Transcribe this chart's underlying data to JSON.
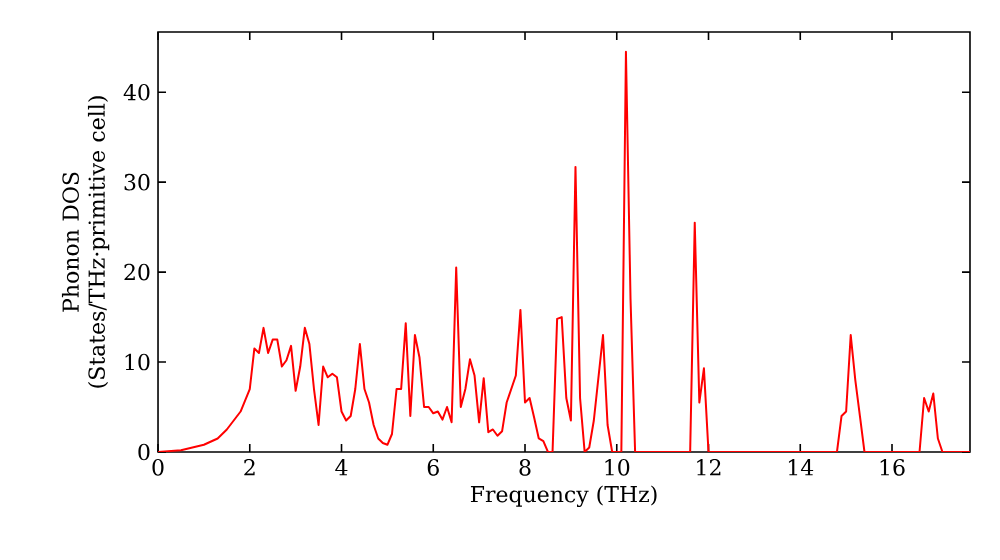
{
  "chart_data": {
    "type": "line",
    "xlabel": "Frequency (THz)",
    "ylabel": "Phonon DOS (States/THz·primitive cell)",
    "xlim": [
      0,
      17.7
    ],
    "ylim": [
      0,
      46.7
    ],
    "xticks": [
      0,
      2,
      4,
      6,
      8,
      10,
      12,
      14,
      16
    ],
    "yticks": [
      0,
      10,
      20,
      30,
      40
    ],
    "grid": false,
    "marker": "none",
    "line_style": "solid",
    "series": [
      {
        "color": "#ff0000",
        "x": [
          0,
          0.5,
          1.0,
          1.3,
          1.5,
          1.8,
          2.0,
          2.1,
          2.2,
          2.3,
          2.4,
          2.5,
          2.6,
          2.7,
          2.8,
          2.9,
          3.0,
          3.1,
          3.2,
          3.3,
          3.4,
          3.5,
          3.6,
          3.7,
          3.8,
          3.9,
          4.0,
          4.1,
          4.2,
          4.3,
          4.4,
          4.5,
          4.6,
          4.7,
          4.8,
          4.9,
          5.0,
          5.1,
          5.2,
          5.3,
          5.4,
          5.5,
          5.6,
          5.7,
          5.8,
          5.9,
          6.0,
          6.1,
          6.2,
          6.3,
          6.4,
          6.5,
          6.6,
          6.7,
          6.8,
          6.9,
          7.0,
          7.1,
          7.2,
          7.3,
          7.4,
          7.5,
          7.6,
          7.8,
          7.9,
          8.0,
          8.1,
          8.2,
          8.3,
          8.4,
          8.5,
          8.6,
          8.7,
          8.8,
          8.9,
          9.0,
          9.1,
          9.2,
          9.3,
          9.4,
          9.5,
          9.7,
          9.8,
          9.9,
          10.0,
          10.1,
          10.2,
          10.3,
          10.4,
          11.6,
          11.7,
          11.8,
          11.9,
          12.0,
          14.8,
          14.9,
          15.0,
          15.1,
          15.2,
          15.3,
          15.4,
          16.6,
          16.7,
          16.8,
          16.9,
          17.0,
          17.1,
          17.7
        ],
        "values": [
          0,
          0.2,
          0.8,
          1.5,
          2.5,
          4.5,
          7,
          11.5,
          11,
          13.8,
          11,
          12.5,
          12.5,
          9.5,
          10.2,
          11.8,
          6.8,
          9.5,
          13.8,
          12,
          7,
          3,
          9.5,
          8.3,
          8.7,
          8.3,
          4.5,
          3.5,
          4,
          7,
          12,
          7,
          5.5,
          3,
          1.5,
          1,
          0.8,
          2,
          7,
          7,
          14.3,
          4,
          13,
          10.5,
          5,
          5,
          4.3,
          4.5,
          3.6,
          5,
          3.3,
          20.5,
          5,
          7,
          10.3,
          8.5,
          3.3,
          8.2,
          2.2,
          2.5,
          1.8,
          2.3,
          5.5,
          8.5,
          15.8,
          5.5,
          6,
          3.8,
          1.5,
          1.2,
          0,
          0,
          14.8,
          15,
          6,
          3.5,
          31.7,
          6,
          0,
          0.5,
          3.5,
          13,
          3,
          0,
          0,
          0,
          44.5,
          17,
          0,
          0,
          25.5,
          5.5,
          9.3,
          0,
          0,
          4,
          4.5,
          13,
          8,
          4,
          0,
          0,
          6,
          4.5,
          6.5,
          1.5,
          0,
          0
        ]
      }
    ]
  }
}
